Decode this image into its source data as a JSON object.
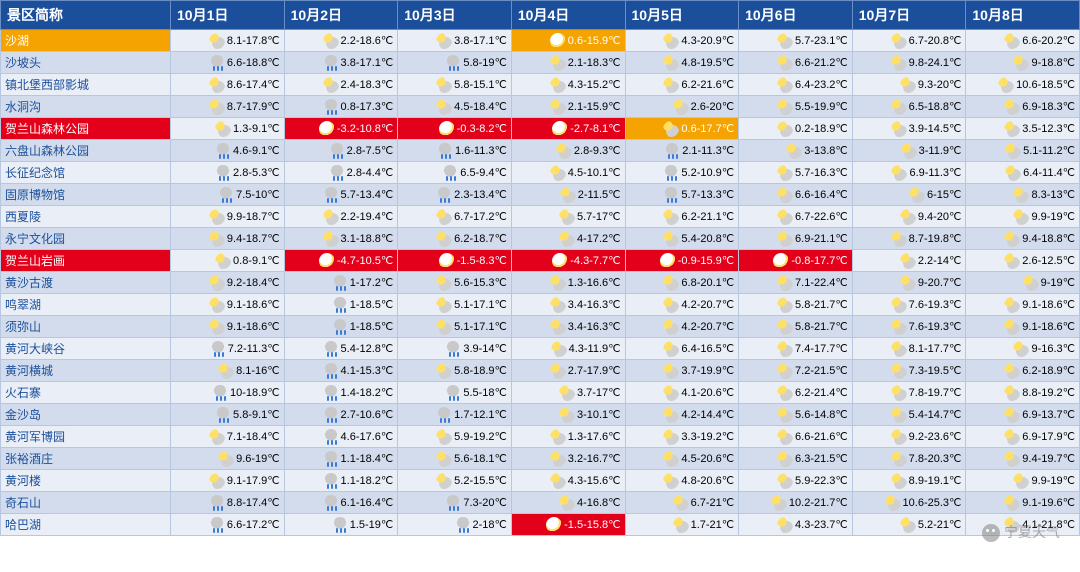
{
  "colors": {
    "header_bg": "#1b4f9b",
    "row_odd": "#eaeef6",
    "row_even": "#d3dcec",
    "border": "#b8c7e0",
    "orange": "#f5a300",
    "red": "#e2001a"
  },
  "icons": {
    "sun": "i-sun",
    "cloud": "i-cloud",
    "rain": "i-rain",
    "wsun": "i-white-sun"
  },
  "header": {
    "name_col": "景区简称",
    "dates": [
      "10月1日",
      "10月2日",
      "10月3日",
      "10月4日",
      "10月5日",
      "10月6日",
      "10月7日",
      "10月8日"
    ]
  },
  "rows": [
    {
      "name": "沙湖",
      "name_hl": "orange",
      "cells": [
        {
          "i": "cloud",
          "t": "8.1-17.8℃"
        },
        {
          "i": "cloud",
          "t": "2.2-18.6℃"
        },
        {
          "i": "cloud",
          "t": "3.8-17.1℃"
        },
        {
          "i": "wsun",
          "t": "0.6-15.9℃",
          "hl": "orange"
        },
        {
          "i": "cloud",
          "t": "4.3-20.9℃"
        },
        {
          "i": "cloud",
          "t": "5.7-23.1℃"
        },
        {
          "i": "cloud",
          "t": "6.7-20.8℃"
        },
        {
          "i": "cloud",
          "t": "6.6-20.2℃"
        }
      ]
    },
    {
      "name": "沙坡头",
      "cells": [
        {
          "i": "rain",
          "t": "6.6-18.8℃"
        },
        {
          "i": "rain",
          "t": "3.8-17.1℃"
        },
        {
          "i": "rain",
          "t": "5.8-19℃"
        },
        {
          "i": "cloud",
          "t": "2.1-18.3℃"
        },
        {
          "i": "cloud",
          "t": "4.8-19.5℃"
        },
        {
          "i": "cloud",
          "t": "6.6-21.2℃"
        },
        {
          "i": "cloud",
          "t": "9.8-24.1℃"
        },
        {
          "i": "cloud",
          "t": "9-18.8℃"
        }
      ]
    },
    {
      "name": "镇北堡西部影城",
      "cells": [
        {
          "i": "cloud",
          "t": "8.6-17.4℃"
        },
        {
          "i": "cloud",
          "t": "2.4-18.3℃"
        },
        {
          "i": "cloud",
          "t": "5.8-15.1℃"
        },
        {
          "i": "cloud",
          "t": "4.3-15.2℃"
        },
        {
          "i": "cloud",
          "t": "6.2-21.6℃"
        },
        {
          "i": "cloud",
          "t": "6.4-23.2℃"
        },
        {
          "i": "cloud",
          "t": "9.3-20℃"
        },
        {
          "i": "cloud",
          "t": "10.6-18.5℃"
        }
      ]
    },
    {
      "name": "水洞沟",
      "cells": [
        {
          "i": "cloud",
          "t": "8.7-17.9℃"
        },
        {
          "i": "rain",
          "t": "0.8-17.3℃"
        },
        {
          "i": "cloud",
          "t": "4.5-18.4℃"
        },
        {
          "i": "cloud",
          "t": "2.1-15.9℃"
        },
        {
          "i": "cloud",
          "t": "2.6-20℃"
        },
        {
          "i": "cloud",
          "t": "5.5-19.9℃"
        },
        {
          "i": "cloud",
          "t": "6.5-18.8℃"
        },
        {
          "i": "cloud",
          "t": "6.9-18.3℃"
        }
      ]
    },
    {
      "name": "贺兰山森林公园",
      "name_hl": "red",
      "cells": [
        {
          "i": "cloud",
          "t": "1.3-9.1℃"
        },
        {
          "i": "wsun",
          "t": "-3.2-10.8℃",
          "hl": "red"
        },
        {
          "i": "wsun",
          "t": "-0.3-8.2℃",
          "hl": "red"
        },
        {
          "i": "wsun",
          "t": "-2.7-8.1℃",
          "hl": "red"
        },
        {
          "i": "cloud",
          "t": "0.6-17.7℃",
          "hl": "orange"
        },
        {
          "i": "cloud",
          "t": "0.2-18.9℃"
        },
        {
          "i": "cloud",
          "t": "3.9-14.5℃"
        },
        {
          "i": "cloud",
          "t": "3.5-12.3℃"
        }
      ]
    },
    {
      "name": "六盘山森林公园",
      "cells": [
        {
          "i": "rain",
          "t": "4.6-9.1℃"
        },
        {
          "i": "rain",
          "t": "2.8-7.5℃"
        },
        {
          "i": "rain",
          "t": "1.6-11.3℃"
        },
        {
          "i": "cloud",
          "t": "2.8-9.3℃"
        },
        {
          "i": "rain",
          "t": "2.1-11.3℃"
        },
        {
          "i": "cloud",
          "t": "3-13.8℃"
        },
        {
          "i": "cloud",
          "t": "3-11.9℃"
        },
        {
          "i": "cloud",
          "t": "5.1-11.2℃"
        }
      ]
    },
    {
      "name": "长征纪念馆",
      "cells": [
        {
          "i": "rain",
          "t": "2.8-5.3℃"
        },
        {
          "i": "rain",
          "t": "2.8-4.4℃"
        },
        {
          "i": "rain",
          "t": "6.5-9.4℃"
        },
        {
          "i": "cloud",
          "t": "4.5-10.1℃"
        },
        {
          "i": "rain",
          "t": "5.2-10.9℃"
        },
        {
          "i": "cloud",
          "t": "5.7-16.3℃"
        },
        {
          "i": "cloud",
          "t": "6.9-11.3℃"
        },
        {
          "i": "cloud",
          "t": "6.4-11.4℃"
        }
      ]
    },
    {
      "name": "固原博物馆",
      "cells": [
        {
          "i": "rain",
          "t": "7.5-10℃"
        },
        {
          "i": "rain",
          "t": "5.7-13.4℃"
        },
        {
          "i": "rain",
          "t": "2.3-13.4℃"
        },
        {
          "i": "cloud",
          "t": "2-11.5℃"
        },
        {
          "i": "rain",
          "t": "5.7-13.3℃"
        },
        {
          "i": "cloud",
          "t": "6.6-16.4℃"
        },
        {
          "i": "cloud",
          "t": "6-15℃"
        },
        {
          "i": "cloud",
          "t": "8.3-13℃"
        }
      ]
    },
    {
      "name": "西夏陵",
      "cells": [
        {
          "i": "cloud",
          "t": "9.9-18.7℃"
        },
        {
          "i": "cloud",
          "t": "2.2-19.4℃"
        },
        {
          "i": "cloud",
          "t": "6.7-17.2℃"
        },
        {
          "i": "cloud",
          "t": "5.7-17℃"
        },
        {
          "i": "cloud",
          "t": "6.2-21.1℃"
        },
        {
          "i": "cloud",
          "t": "6.7-22.6℃"
        },
        {
          "i": "cloud",
          "t": "9.4-20℃"
        },
        {
          "i": "cloud",
          "t": "9.9-19℃"
        }
      ]
    },
    {
      "name": "永宁文化园",
      "cells": [
        {
          "i": "cloud",
          "t": "9.4-18.7℃"
        },
        {
          "i": "cloud",
          "t": "3.1-18.8℃"
        },
        {
          "i": "cloud",
          "t": "6.2-18.7℃"
        },
        {
          "i": "cloud",
          "t": "4-17.2℃"
        },
        {
          "i": "cloud",
          "t": "5.4-20.8℃"
        },
        {
          "i": "cloud",
          "t": "6.9-21.1℃"
        },
        {
          "i": "cloud",
          "t": "8.7-19.8℃"
        },
        {
          "i": "cloud",
          "t": "9.4-18.8℃"
        }
      ]
    },
    {
      "name": "贺兰山岩画",
      "name_hl": "red",
      "cells": [
        {
          "i": "cloud",
          "t": "0.8-9.1℃"
        },
        {
          "i": "wsun",
          "t": "-4.7-10.5℃",
          "hl": "red"
        },
        {
          "i": "wsun",
          "t": "-1.5-8.3℃",
          "hl": "red"
        },
        {
          "i": "wsun",
          "t": "-4.3-7.7℃",
          "hl": "red"
        },
        {
          "i": "wsun",
          "t": "-0.9-15.9℃",
          "hl": "red"
        },
        {
          "i": "wsun",
          "t": "-0.8-17.7℃",
          "hl": "red"
        },
        {
          "i": "cloud",
          "t": "2.2-14℃"
        },
        {
          "i": "cloud",
          "t": "2.6-12.5℃"
        }
      ]
    },
    {
      "name": "黄沙古渡",
      "cells": [
        {
          "i": "cloud",
          "t": "9.2-18.4℃"
        },
        {
          "i": "rain",
          "t": "1-17.2℃"
        },
        {
          "i": "cloud",
          "t": "5.6-15.3℃"
        },
        {
          "i": "cloud",
          "t": "1.3-16.6℃"
        },
        {
          "i": "cloud",
          "t": "6.8-20.1℃"
        },
        {
          "i": "cloud",
          "t": "7.1-22.4℃"
        },
        {
          "i": "cloud",
          "t": "9-20.7℃"
        },
        {
          "i": "cloud",
          "t": "9-19℃"
        }
      ]
    },
    {
      "name": "鸣翠湖",
      "cells": [
        {
          "i": "cloud",
          "t": "9.1-18.6℃"
        },
        {
          "i": "rain",
          "t": "1-18.5℃"
        },
        {
          "i": "cloud",
          "t": "5.1-17.1℃"
        },
        {
          "i": "cloud",
          "t": "3.4-16.3℃"
        },
        {
          "i": "cloud",
          "t": "4.2-20.7℃"
        },
        {
          "i": "cloud",
          "t": "5.8-21.7℃"
        },
        {
          "i": "cloud",
          "t": "7.6-19.3℃"
        },
        {
          "i": "cloud",
          "t": "9.1-18.6℃"
        }
      ]
    },
    {
      "name": "须弥山",
      "cells": [
        {
          "i": "cloud",
          "t": "9.1-18.6℃"
        },
        {
          "i": "rain",
          "t": "1-18.5℃"
        },
        {
          "i": "cloud",
          "t": "5.1-17.1℃"
        },
        {
          "i": "cloud",
          "t": "3.4-16.3℃"
        },
        {
          "i": "cloud",
          "t": "4.2-20.7℃"
        },
        {
          "i": "cloud",
          "t": "5.8-21.7℃"
        },
        {
          "i": "cloud",
          "t": "7.6-19.3℃"
        },
        {
          "i": "cloud",
          "t": "9.1-18.6℃"
        }
      ]
    },
    {
      "name": "黄河大峡谷",
      "cells": [
        {
          "i": "rain",
          "t": "7.2-11.3℃"
        },
        {
          "i": "rain",
          "t": "5.4-12.8℃"
        },
        {
          "i": "rain",
          "t": "3.9-14℃"
        },
        {
          "i": "cloud",
          "t": "4.3-11.9℃"
        },
        {
          "i": "cloud",
          "t": "6.4-16.5℃"
        },
        {
          "i": "cloud",
          "t": "7.4-17.7℃"
        },
        {
          "i": "cloud",
          "t": "8.1-17.7℃"
        },
        {
          "i": "cloud",
          "t": "9-16.3℃"
        }
      ]
    },
    {
      "name": "黄河横城",
      "cells": [
        {
          "i": "cloud",
          "t": "8.1-16℃"
        },
        {
          "i": "rain",
          "t": "4.1-15.3℃"
        },
        {
          "i": "cloud",
          "t": "5.8-18.9℃"
        },
        {
          "i": "cloud",
          "t": "2.7-17.9℃"
        },
        {
          "i": "cloud",
          "t": "3.7-19.9℃"
        },
        {
          "i": "cloud",
          "t": "7.2-21.5℃"
        },
        {
          "i": "cloud",
          "t": "7.3-19.5℃"
        },
        {
          "i": "cloud",
          "t": "6.2-18.9℃"
        }
      ]
    },
    {
      "name": "火石寨",
      "cells": [
        {
          "i": "rain",
          "t": "10-18.9℃"
        },
        {
          "i": "rain",
          "t": "1.4-18.2℃"
        },
        {
          "i": "rain",
          "t": "5.5-18℃"
        },
        {
          "i": "cloud",
          "t": "3.7-17℃"
        },
        {
          "i": "cloud",
          "t": "4.1-20.6℃"
        },
        {
          "i": "cloud",
          "t": "6.2-21.4℃"
        },
        {
          "i": "cloud",
          "t": "7.8-19.7℃"
        },
        {
          "i": "cloud",
          "t": "8.8-19.2℃"
        }
      ]
    },
    {
      "name": "金沙岛",
      "cells": [
        {
          "i": "rain",
          "t": "5.8-9.1℃"
        },
        {
          "i": "rain",
          "t": "2.7-10.6℃"
        },
        {
          "i": "rain",
          "t": "1.7-12.1℃"
        },
        {
          "i": "cloud",
          "t": "3-10.1℃"
        },
        {
          "i": "cloud",
          "t": "4.2-14.4℃"
        },
        {
          "i": "cloud",
          "t": "5.6-14.8℃"
        },
        {
          "i": "cloud",
          "t": "5.4-14.7℃"
        },
        {
          "i": "cloud",
          "t": "6.9-13.7℃"
        }
      ]
    },
    {
      "name": "黄河军博园",
      "cells": [
        {
          "i": "cloud",
          "t": "7.1-18.4℃"
        },
        {
          "i": "rain",
          "t": "4.6-17.6℃"
        },
        {
          "i": "cloud",
          "t": "5.9-19.2℃"
        },
        {
          "i": "cloud",
          "t": "1.3-17.6℃"
        },
        {
          "i": "cloud",
          "t": "3.3-19.2℃"
        },
        {
          "i": "cloud",
          "t": "6.6-21.6℃"
        },
        {
          "i": "cloud",
          "t": "9.2-23.6℃"
        },
        {
          "i": "cloud",
          "t": "6.9-17.9℃"
        }
      ]
    },
    {
      "name": "张裕酒庄",
      "cells": [
        {
          "i": "cloud",
          "t": "9.6-19℃"
        },
        {
          "i": "rain",
          "t": "1.1-18.4℃"
        },
        {
          "i": "cloud",
          "t": "5.6-18.1℃"
        },
        {
          "i": "cloud",
          "t": "3.2-16.7℃"
        },
        {
          "i": "cloud",
          "t": "4.5-20.6℃"
        },
        {
          "i": "cloud",
          "t": "6.3-21.5℃"
        },
        {
          "i": "cloud",
          "t": "7.8-20.3℃"
        },
        {
          "i": "cloud",
          "t": "9.4-19.7℃"
        }
      ]
    },
    {
      "name": "黄河楼",
      "cells": [
        {
          "i": "cloud",
          "t": "9.1-17.9℃"
        },
        {
          "i": "rain",
          "t": "1.1-18.2℃"
        },
        {
          "i": "cloud",
          "t": "5.2-15.5℃"
        },
        {
          "i": "cloud",
          "t": "4.3-15.6℃"
        },
        {
          "i": "cloud",
          "t": "4.8-20.6℃"
        },
        {
          "i": "cloud",
          "t": "5.9-22.3℃"
        },
        {
          "i": "cloud",
          "t": "8.9-19.1℃"
        },
        {
          "i": "cloud",
          "t": "9.9-19℃"
        }
      ]
    },
    {
      "name": "奇石山",
      "cells": [
        {
          "i": "rain",
          "t": "8.8-17.4℃"
        },
        {
          "i": "rain",
          "t": "6.1-16.4℃"
        },
        {
          "i": "rain",
          "t": "7.3-20℃"
        },
        {
          "i": "cloud",
          "t": "4-16.8℃"
        },
        {
          "i": "cloud",
          "t": "6.7-21℃"
        },
        {
          "i": "cloud",
          "t": "10.2-21.7℃"
        },
        {
          "i": "cloud",
          "t": "10.6-25.3℃"
        },
        {
          "i": "cloud",
          "t": "9.1-19.6℃"
        }
      ]
    },
    {
      "name": "哈巴湖",
      "cells": [
        {
          "i": "rain",
          "t": "6.6-17.2℃"
        },
        {
          "i": "rain",
          "t": "1.5-19℃"
        },
        {
          "i": "rain",
          "t": "2-18℃"
        },
        {
          "i": "wsun",
          "t": "-1.5-15.8℃",
          "hl": "red"
        },
        {
          "i": "cloud",
          "t": "1.7-21℃"
        },
        {
          "i": "cloud",
          "t": "4.3-23.7℃"
        },
        {
          "i": "cloud",
          "t": "5.2-21℃"
        },
        {
          "i": "cloud",
          "t": "4.1-21.8℃"
        }
      ]
    }
  ],
  "watermark": "宁夏天气"
}
